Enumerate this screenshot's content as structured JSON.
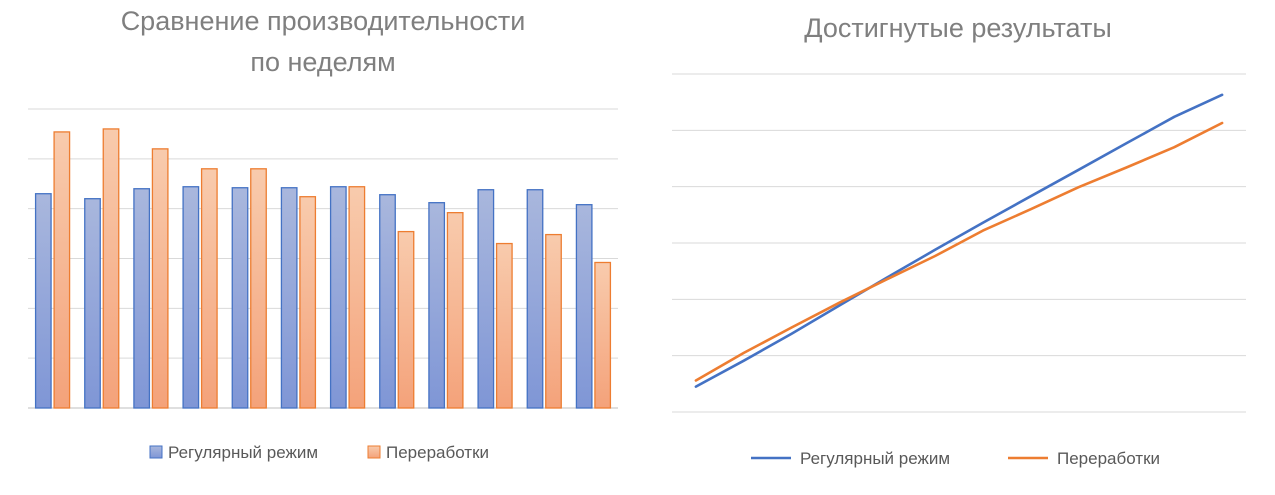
{
  "chart_data": [
    {
      "type": "bar",
      "title_lines": [
        "Сравнение производительности",
        "по неделям"
      ],
      "xlabel": "",
      "ylabel": "",
      "ylim": [
        0,
        30
      ],
      "grid": true,
      "legend_position": "bottom",
      "categories": [
        "",
        "",
        "",
        "",
        "",
        "",
        "",
        "",
        "",
        "",
        "",
        ""
      ],
      "series": [
        {
          "name": "Регулярный режим",
          "color": "#4472c4",
          "fill_top": "#a9b7dd",
          "fill_bottom": "#7f96d6",
          "values": [
            21.5,
            21.0,
            22.0,
            22.2,
            22.1,
            22.1,
            22.2,
            21.4,
            20.6,
            21.9,
            21.9,
            20.4
          ]
        },
        {
          "name": "Переработки",
          "color": "#ed7d31",
          "fill_top": "#f8cbad",
          "fill_bottom": "#f4a27a",
          "values": [
            27.7,
            28.0,
            26.0,
            24.0,
            24.0,
            21.2,
            22.2,
            17.7,
            19.6,
            16.5,
            17.4,
            14.6
          ]
        }
      ]
    },
    {
      "type": "line",
      "title": "Достигнутые результаты",
      "xlabel": "",
      "ylabel": "",
      "ylim": [
        0,
        60
      ],
      "grid": true,
      "legend_position": "bottom",
      "categories": [
        "",
        "",
        "",
        "",
        "",
        "",
        "",
        "",
        "",
        "",
        "",
        ""
      ],
      "series": [
        {
          "name": "Регулярный режим",
          "color": "#4472c4",
          "values": [
            4.5,
            9.1,
            13.9,
            18.9,
            23.9,
            28.8,
            33.6,
            38.3,
            43.0,
            47.7,
            52.4,
            56.3
          ]
        },
        {
          "name": "Переработки",
          "color": "#ed7d31",
          "values": [
            5.6,
            10.5,
            15.0,
            19.4,
            23.6,
            27.7,
            32.2,
            36.0,
            39.9,
            43.4,
            47.0,
            51.3
          ]
        }
      ]
    }
  ]
}
